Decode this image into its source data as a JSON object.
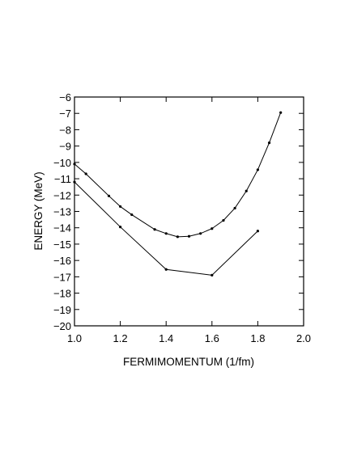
{
  "chart_data": {
    "type": "line",
    "xlabel": "FERMIMOMENTUM  (1/fm)",
    "ylabel": "ENERGY  (MeV)",
    "xlim": [
      1.0,
      2.0
    ],
    "ylim": [
      -20,
      -6
    ],
    "x_ticks": [
      "1.0",
      "1.2",
      "1.4",
      "1.6",
      "1.8",
      "2.0"
    ],
    "y_ticks": [
      "-6",
      "-7",
      "-8",
      "-9",
      "-10",
      "-11",
      "-12",
      "-13",
      "-14",
      "-15",
      "-16",
      "-17",
      "-18",
      "-19",
      "-20"
    ],
    "grid": false,
    "series": [
      {
        "color": "#000000",
        "points": [
          {
            "x": 1.0,
            "y": -10.1
          },
          {
            "x": 1.05,
            "y": -10.7
          },
          {
            "x": 1.15,
            "y": -12.05
          },
          {
            "x": 1.2,
            "y": -12.7
          },
          {
            "x": 1.25,
            "y": -13.2
          },
          {
            "x": 1.35,
            "y": -14.1
          },
          {
            "x": 1.4,
            "y": -14.35
          },
          {
            "x": 1.45,
            "y": -14.55
          },
          {
            "x": 1.5,
            "y": -14.52
          },
          {
            "x": 1.55,
            "y": -14.35
          },
          {
            "x": 1.6,
            "y": -14.05
          },
          {
            "x": 1.65,
            "y": -13.55
          },
          {
            "x": 1.7,
            "y": -12.8
          },
          {
            "x": 1.75,
            "y": -11.75
          },
          {
            "x": 1.8,
            "y": -10.45
          },
          {
            "x": 1.85,
            "y": -8.8
          },
          {
            "x": 1.9,
            "y": -6.95
          }
        ]
      },
      {
        "color": "#000000",
        "points": [
          {
            "x": 1.0,
            "y": -11.2
          },
          {
            "x": 1.2,
            "y": -13.95
          },
          {
            "x": 1.4,
            "y": -16.55
          },
          {
            "x": 1.6,
            "y": -16.9
          },
          {
            "x": 1.8,
            "y": -14.2
          }
        ]
      }
    ]
  }
}
